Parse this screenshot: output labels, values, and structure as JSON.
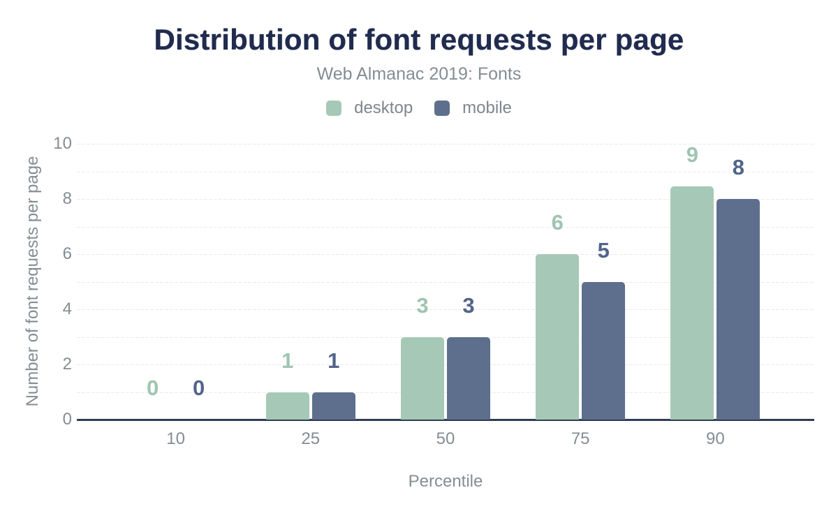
{
  "figure": {
    "title": "Distribution of font requests per page",
    "subtitle": "Web Almanac 2019: Fonts"
  },
  "chart_data": {
    "type": "bar",
    "title": "Distribution of font requests per page",
    "subtitle": "Web Almanac 2019: Fonts",
    "categories": [
      "10",
      "25",
      "50",
      "75",
      "90"
    ],
    "series": [
      {
        "name": "desktop",
        "values": [
          0,
          1,
          3,
          6,
          9
        ],
        "color": "#a6c9b7",
        "label_color": "#9ec5b2"
      },
      {
        "name": "mobile",
        "values": [
          0,
          1,
          3,
          5,
          8
        ],
        "color": "#5d6f8d",
        "label_color": "#51648a"
      }
    ],
    "value_labels": [
      "0",
      "0",
      "1",
      "1",
      "3",
      "3",
      "6",
      "5",
      "9",
      "8"
    ],
    "xlabel": "Percentile",
    "ylabel": "Number of font requests per page",
    "ylim": [
      0,
      10
    ],
    "y_ticks": [
      0,
      2,
      4,
      6,
      8,
      10
    ],
    "grid": "horizontal lines at every 1 unit",
    "legend_position": "top-center"
  },
  "colors": {
    "background": "#ffffff",
    "title_text": "#202b4e",
    "muted_text": "#848d93",
    "axis_line": "#2f3c55",
    "gridline": "#ebebeb",
    "desktop_bar": "#a6c9b7",
    "mobile_bar": "#5d6f8d"
  }
}
